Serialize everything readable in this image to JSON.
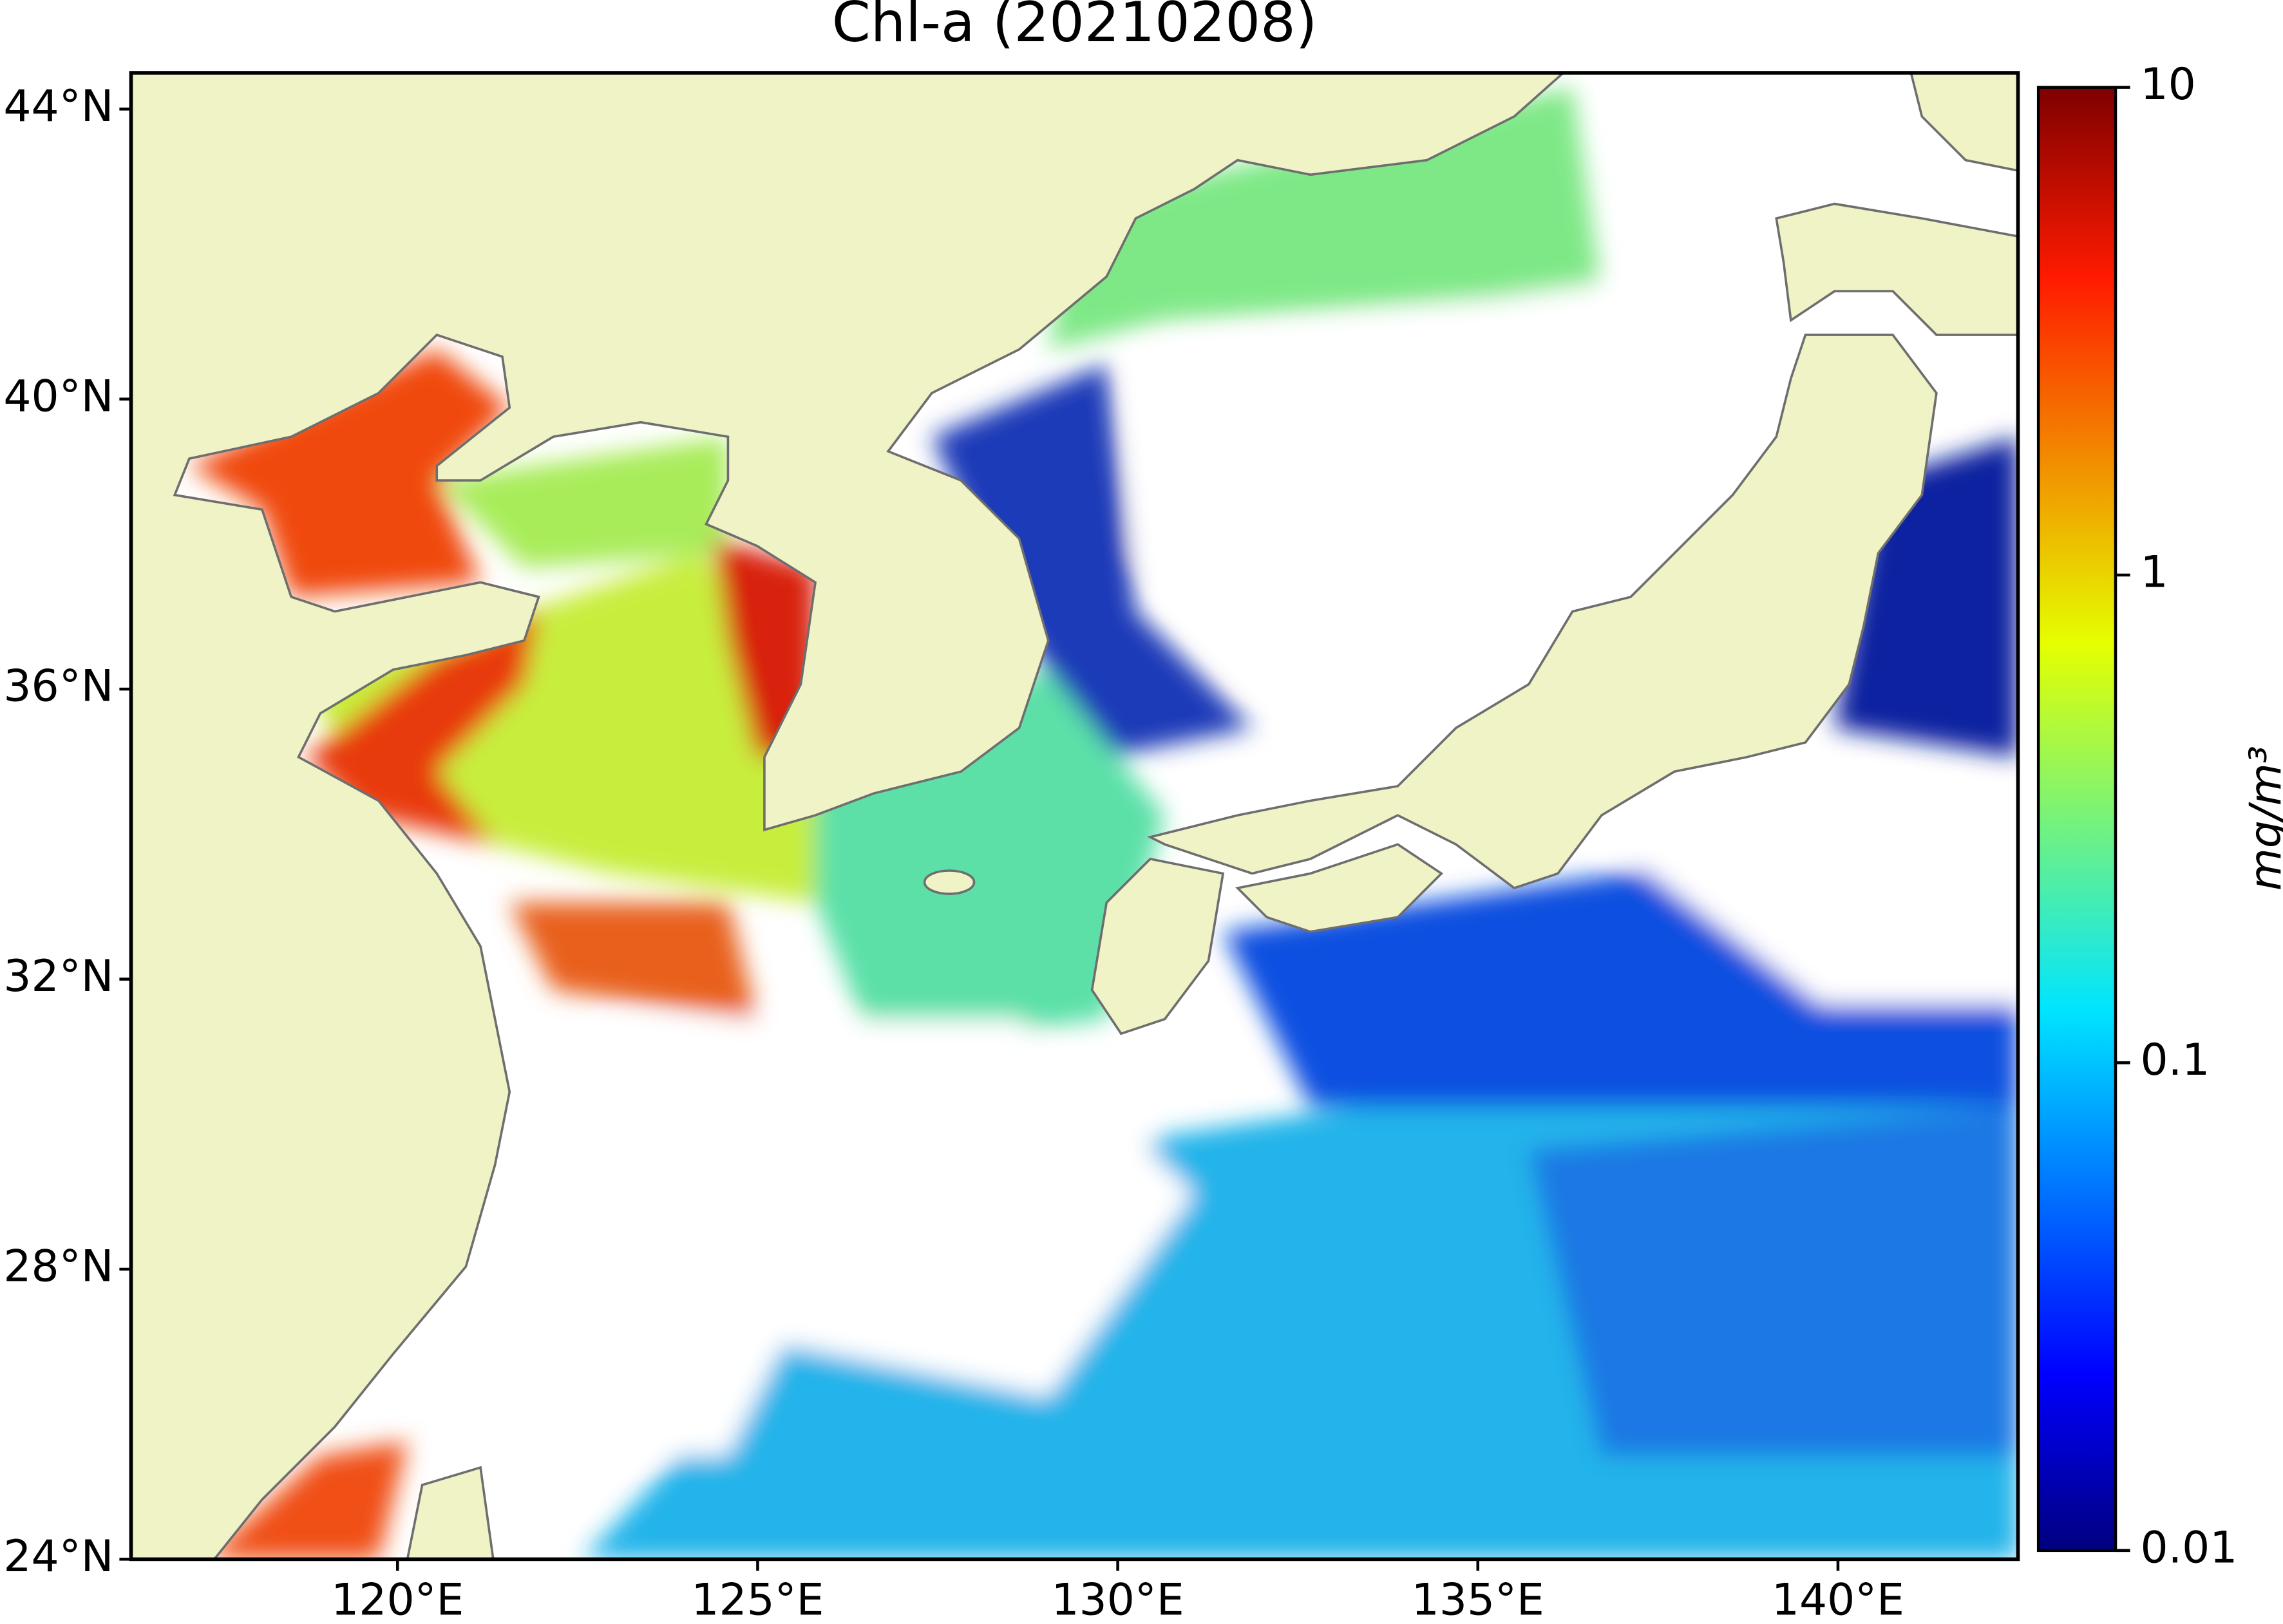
{
  "chart_data": {
    "type": "map",
    "title": "Chl-a (20210208)",
    "xlim": [
      116.3,
      142.5
    ],
    "ylim": [
      24,
      44.5
    ],
    "xticks": [
      {
        "value": 120,
        "label": "120°E"
      },
      {
        "value": 125,
        "label": "125°E"
      },
      {
        "value": 130,
        "label": "130°E"
      },
      {
        "value": 135,
        "label": "135°E"
      },
      {
        "value": 140,
        "label": "140°E"
      }
    ],
    "yticks": [
      {
        "value": 24,
        "label": "24°N"
      },
      {
        "value": 28,
        "label": "28°N"
      },
      {
        "value": 32,
        "label": "32°N"
      },
      {
        "value": 36,
        "label": "36°N"
      },
      {
        "value": 40,
        "label": "40°N"
      },
      {
        "value": 44,
        "label": "44°N"
      }
    ],
    "colorbar": {
      "label": "mg/m³",
      "scale": "log",
      "clim": [
        0.01,
        10
      ],
      "ticks": [
        0.01,
        0.1,
        1,
        10
      ]
    }
  }
}
